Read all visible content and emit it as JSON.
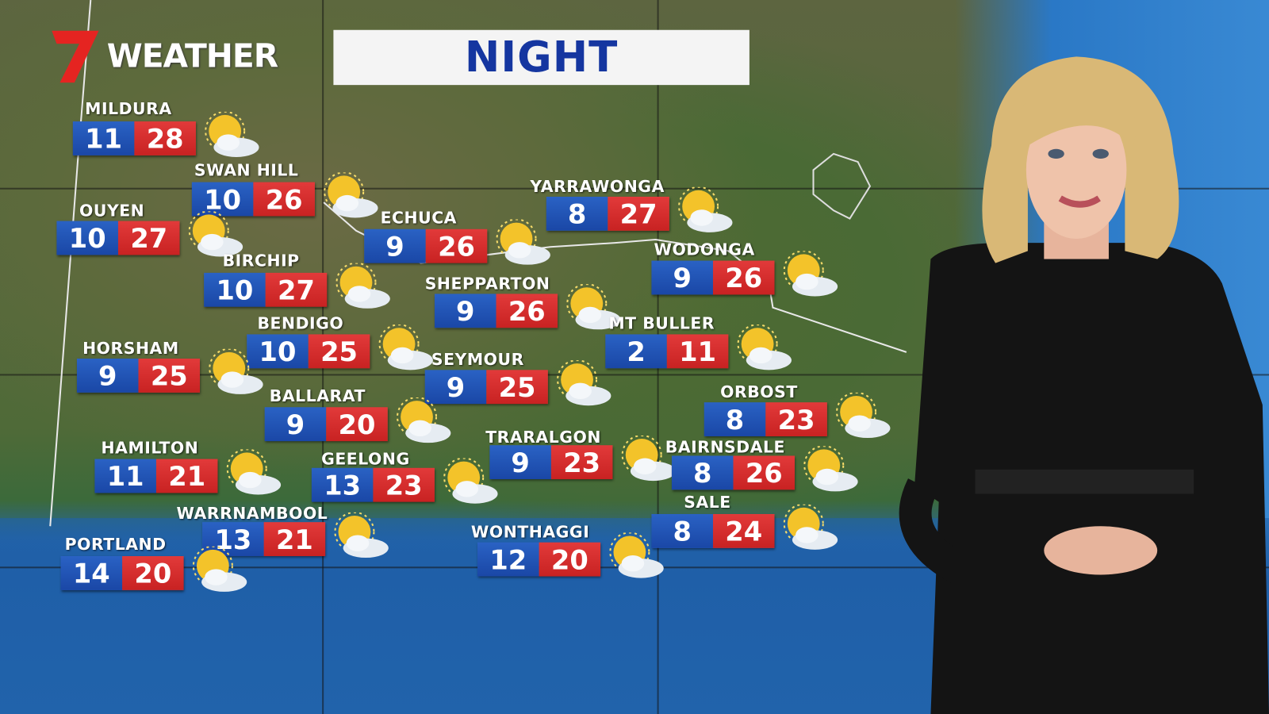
{
  "brand": {
    "logo_text": "WEATHER",
    "logo_number": "7"
  },
  "title": "NIGHT",
  "colors": {
    "min_temp": "#1a47a6",
    "max_temp": "#c82222",
    "title_text": "#1536a0"
  },
  "icon": "sun-behind-cloud-icon",
  "cities": [
    {
      "name": "MILDURA",
      "min": "11",
      "max": "28"
    },
    {
      "name": "SWAN HILL",
      "min": "10",
      "max": "26"
    },
    {
      "name": "OUYEN",
      "min": "10",
      "max": "27"
    },
    {
      "name": "ECHUCA",
      "min": "9",
      "max": "26"
    },
    {
      "name": "YARRAWONGA",
      "min": "8",
      "max": "27"
    },
    {
      "name": "WODONGA",
      "min": "9",
      "max": "26"
    },
    {
      "name": "BIRCHIP",
      "min": "10",
      "max": "27"
    },
    {
      "name": "SHEPPARTON",
      "min": "9",
      "max": "26"
    },
    {
      "name": "BENDIGO",
      "min": "10",
      "max": "25"
    },
    {
      "name": "MT BULLER",
      "min": "2",
      "max": "11"
    },
    {
      "name": "HORSHAM",
      "min": "9",
      "max": "25"
    },
    {
      "name": "SEYMOUR",
      "min": "9",
      "max": "25"
    },
    {
      "name": "BALLARAT",
      "min": "9",
      "max": "20"
    },
    {
      "name": "ORBOST",
      "min": "8",
      "max": "23"
    },
    {
      "name": "HAMILTON",
      "min": "11",
      "max": "21"
    },
    {
      "name": "GEELONG",
      "min": "13",
      "max": "23"
    },
    {
      "name": "TRARALGON",
      "min": "9",
      "max": "23"
    },
    {
      "name": "BAIRNSDALE",
      "min": "8",
      "max": "26"
    },
    {
      "name": "SALE",
      "min": "8",
      "max": "24"
    },
    {
      "name": "WARRNAMBOOL",
      "min": "13",
      "max": "21"
    },
    {
      "name": "WONTHAGGI",
      "min": "12",
      "max": "20"
    },
    {
      "name": "PORTLAND",
      "min": "14",
      "max": "20"
    }
  ]
}
